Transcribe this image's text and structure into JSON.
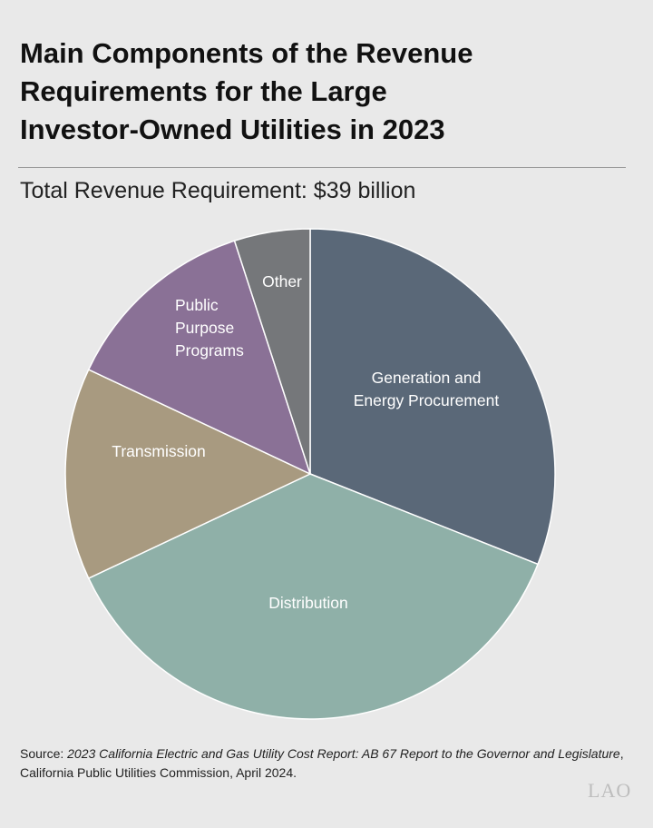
{
  "chart_data": {
    "type": "pie",
    "title_lines": [
      "Main Components of the Revenue",
      "Requirements for the Large",
      "Investor-Owned Utilities in 2023"
    ],
    "subtitle": "Total Revenue Requirement: $39 billion",
    "slices": [
      {
        "label_lines": [
          "Generation and",
          "Energy Procurement"
        ],
        "share": 0.31,
        "color": "#5a6878"
      },
      {
        "label_lines": [
          "Distribution"
        ],
        "share": 0.37,
        "color": "#8fb0a8"
      },
      {
        "label_lines": [
          "Transmission"
        ],
        "share": 0.14,
        "color": "#a89a80"
      },
      {
        "label_lines": [
          "Public",
          "Purpose",
          "Programs"
        ],
        "share": 0.13,
        "color": "#8a7196"
      },
      {
        "label_lines": [
          "Other"
        ],
        "share": 0.05,
        "color": "#75777a"
      }
    ]
  },
  "source": {
    "prefix": "Source: ",
    "italic": "2023 California Electric and Gas Utility Cost Report: AB 67 Report to the Governor and Legislature",
    "suffix": ", California Public Utilities Commission, April 2024."
  },
  "logo": "LAO"
}
